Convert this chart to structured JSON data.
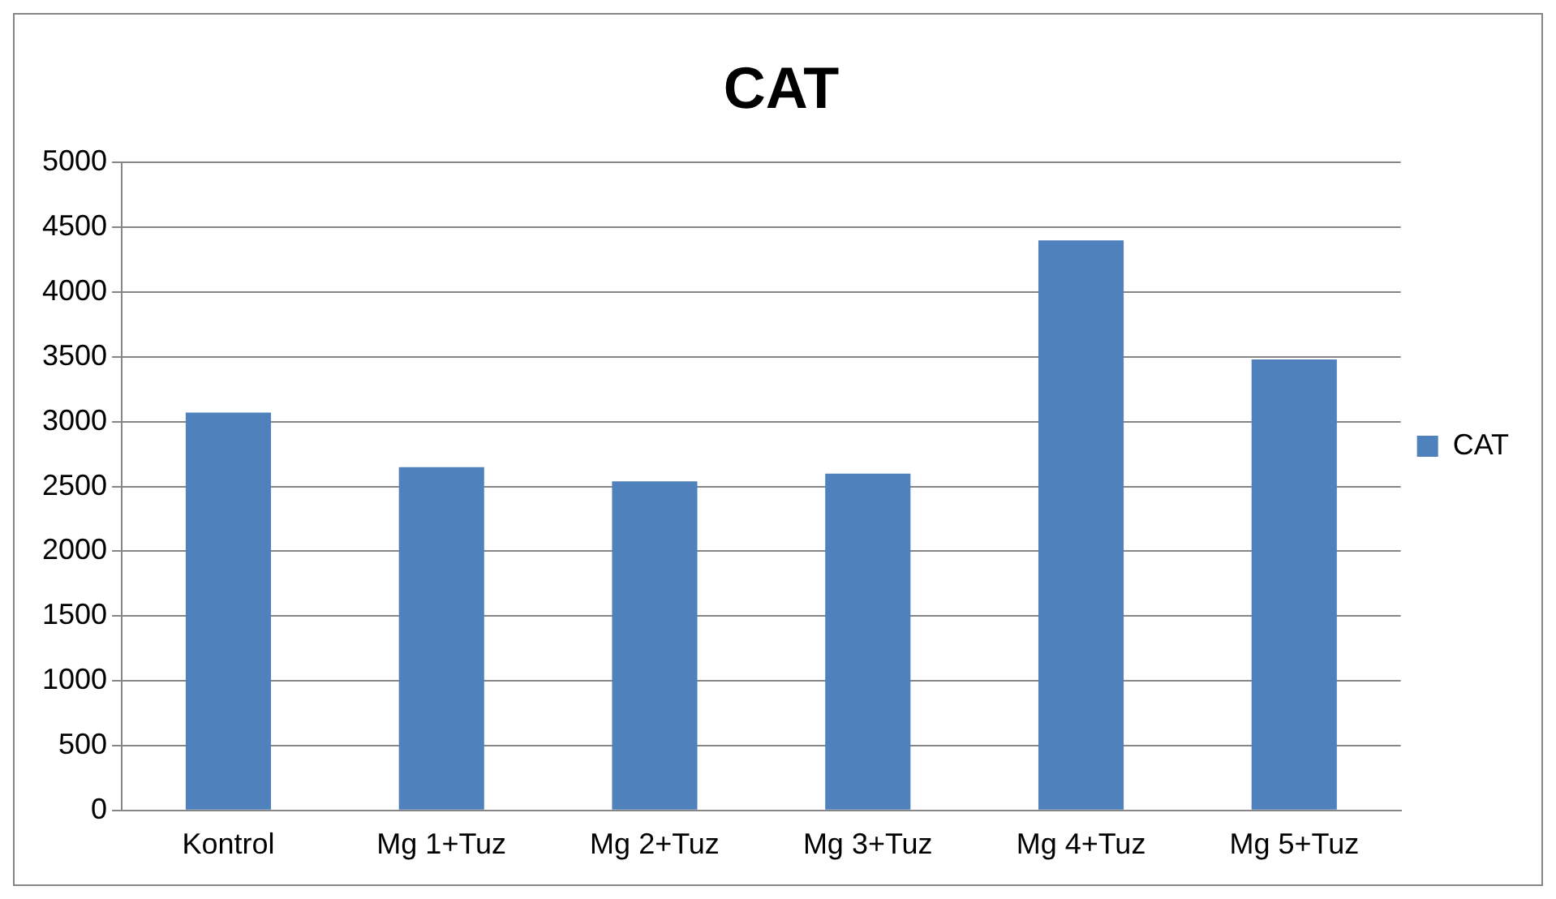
{
  "chart_data": {
    "type": "bar",
    "title": "CAT",
    "categories": [
      "Kontrol",
      "Mg 1+Tuz",
      "Mg 2+Tuz",
      "Mg 3+Tuz",
      "Mg 4+Tuz",
      "Mg 5+Tuz"
    ],
    "series": [
      {
        "name": "CAT",
        "color": "#4f81bd",
        "values": [
          3070,
          2650,
          2540,
          2600,
          4400,
          3480
        ]
      }
    ],
    "ylim": [
      0,
      5000
    ],
    "yticks": [
      0,
      500,
      1000,
      1500,
      2000,
      2500,
      3000,
      3500,
      4000,
      4500,
      5000
    ],
    "grid": "y",
    "legend": "right"
  }
}
